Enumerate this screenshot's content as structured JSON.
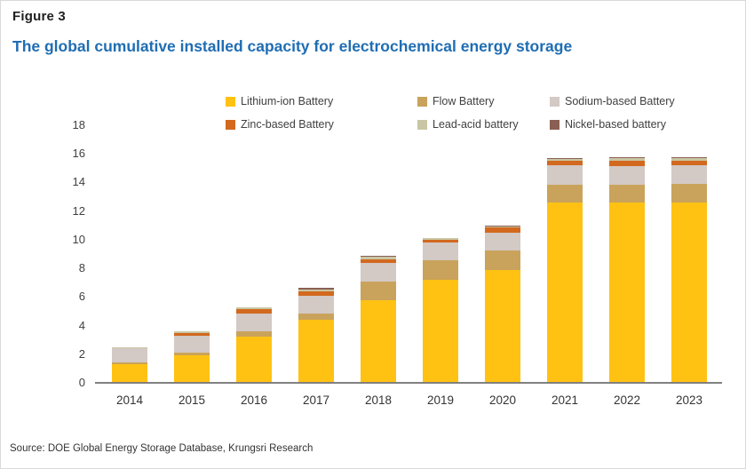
{
  "figure": {
    "label": "Figure 3",
    "title": "The global cumulative installed capacity for electrochemical energy storage"
  },
  "source": "Source: DOE Global Energy Storage Database, Krungsri Research",
  "colors": {
    "title_blue": "#1f6db3",
    "axis_line": "#808080",
    "axis_text": "#404040"
  },
  "chart_data": {
    "type": "bar",
    "stacked": true,
    "title": "The global cumulative installed capacity for electrochemical energy storage",
    "xlabel": "",
    "ylabel": "",
    "ylim": [
      0,
      18
    ],
    "yticks": [
      0,
      2,
      4,
      6,
      8,
      10,
      12,
      14,
      16,
      18
    ],
    "grid": false,
    "legend_position": "top",
    "categories": [
      "2014",
      "2015",
      "2016",
      "2017",
      "2018",
      "2019",
      "2020",
      "2021",
      "2022",
      "2023"
    ],
    "series": [
      {
        "name": "Lithium-ion Battery",
        "color": "#ffc213",
        "values": [
          1.3,
          1.9,
          3.2,
          4.4,
          5.8,
          7.2,
          7.9,
          12.6,
          12.6,
          12.6
        ]
      },
      {
        "name": "Flow Battery",
        "color": "#c9a35b",
        "values": [
          0.1,
          0.2,
          0.4,
          0.45,
          1.25,
          1.35,
          1.35,
          1.25,
          1.25,
          1.3
        ]
      },
      {
        "name": "Sodium-based Battery",
        "color": "#d3c9c5",
        "values": [
          1.0,
          1.2,
          1.25,
          1.25,
          1.35,
          1.25,
          1.25,
          1.35,
          1.3,
          1.3
        ]
      },
      {
        "name": "Zinc-based Battery",
        "color": "#d2691e",
        "values": [
          0.0,
          0.2,
          0.3,
          0.3,
          0.25,
          0.2,
          0.35,
          0.3,
          0.4,
          0.35
        ]
      },
      {
        "name": "Lead-acid battery",
        "color": "#c9c6a3",
        "values": [
          0.1,
          0.1,
          0.1,
          0.15,
          0.15,
          0.1,
          0.1,
          0.15,
          0.15,
          0.15
        ]
      },
      {
        "name": "Nickel-based battery",
        "color": "#8a5f53",
        "values": [
          0.0,
          0.0,
          0.05,
          0.1,
          0.1,
          0.05,
          0.05,
          0.05,
          0.05,
          0.05
        ]
      }
    ],
    "totals": [
      2.5,
      3.6,
      5.3,
      6.65,
      8.9,
      10.15,
      11.0,
      15.7,
      15.75,
      15.75
    ]
  }
}
